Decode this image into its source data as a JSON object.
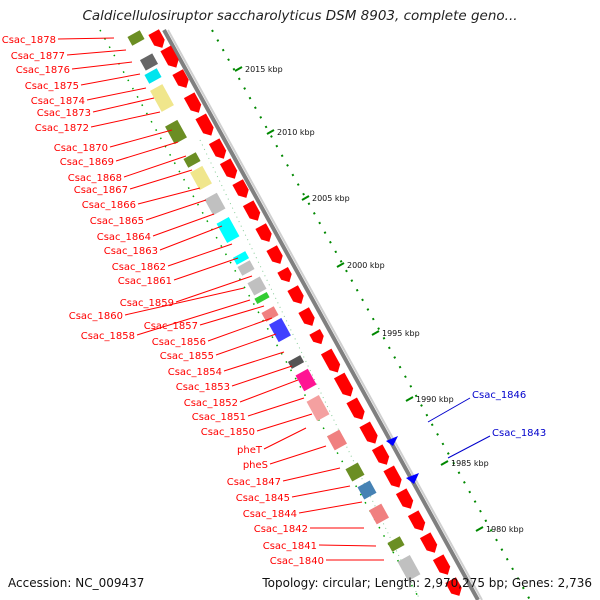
{
  "title": "Caldicellulosiruptor saccharolyticus DSM 8903, complete geno...",
  "footer": {
    "accession": "Accession: NC_009437",
    "summary": "Topology: circular; Length: 2,970,275 bp; Genes: 2,736"
  },
  "scale_ticks": [
    "2015 kbp",
    "2010 kbp",
    "2005 kbp",
    "2000 kbp",
    "1995 kbp",
    "1990 kbp",
    "1985 kbp",
    "1980 kbp"
  ],
  "left_labels": [
    "Csac_1878",
    "Csac_1877",
    "Csac_1876",
    "Csac_1875",
    "Csac_1874",
    "Csac_1873",
    "Csac_1872",
    "Csac_1870",
    "Csac_1869",
    "Csac_1868",
    "Csac_1867",
    "Csac_1866",
    "Csac_1865",
    "Csac_1864",
    "Csac_1863",
    "Csac_1862",
    "Csac_1861",
    "Csac_1859",
    "Csac_1860",
    "Csac_1858",
    "Csac_1857",
    "Csac_1856",
    "Csac_1855",
    "Csac_1854",
    "Csac_1853",
    "Csac_1852",
    "Csac_1851",
    "Csac_1850",
    "pheT",
    "pheS",
    "Csac_1847",
    "Csac_1845",
    "Csac_1844",
    "Csac_1842",
    "Csac_1841",
    "Csac_1840"
  ],
  "right_labels": [
    "Csac_1846",
    "Csac_1843"
  ],
  "colors": {
    "forward_gene": "#ff0000",
    "backbone": "#808080",
    "label_red": "#ff0000",
    "label_blue": "#0000cc",
    "scale_dots": "#008800"
  }
}
